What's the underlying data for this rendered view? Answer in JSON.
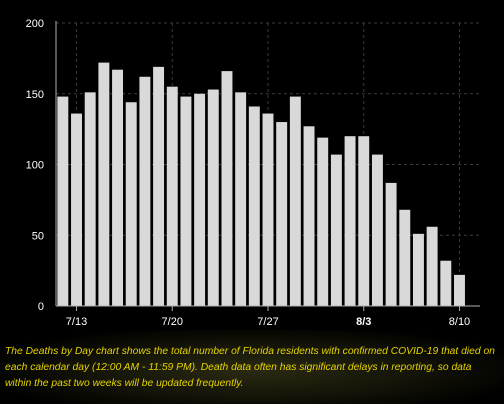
{
  "chart_data": {
    "type": "bar",
    "categories": [
      "7/12",
      "7/13",
      "7/14",
      "7/15",
      "7/16",
      "7/17",
      "7/18",
      "7/19",
      "7/20",
      "7/21",
      "7/22",
      "7/23",
      "7/24",
      "7/25",
      "7/26",
      "7/27",
      "7/28",
      "7/29",
      "7/30",
      "7/31",
      "8/1",
      "8/2",
      "8/3",
      "8/4",
      "8/5",
      "8/6",
      "8/7",
      "8/8",
      "8/9",
      "8/10",
      "8/11"
    ],
    "values": [
      148,
      136,
      151,
      172,
      167,
      144,
      162,
      169,
      155,
      148,
      150,
      153,
      166,
      151,
      141,
      136,
      130,
      148,
      127,
      119,
      107,
      120,
      120,
      107,
      87,
      68,
      51,
      56,
      32,
      22,
      0
    ],
    "ylim": [
      0,
      200
    ],
    "yticks": [
      0,
      50,
      100,
      150,
      200
    ],
    "xtick_labels": [
      {
        "label": "7/13",
        "category": "7/13",
        "bold": false
      },
      {
        "label": "7/20",
        "category": "7/20",
        "bold": false
      },
      {
        "label": "7/27",
        "category": "7/27",
        "bold": false
      },
      {
        "label": "8/3",
        "category": "8/3",
        "bold": true
      },
      {
        "label": "8/10",
        "category": "8/10",
        "bold": false
      }
    ],
    "grid": true,
    "bar_color": "#d9d9d9",
    "background": "#000000",
    "grid_color": "#3a3a3a",
    "axis_color": "#b0b0b0"
  },
  "caption": {
    "text": "The Deaths by Day chart shows the total number of Florida residents with confirmed COVID-19 that died on each calendar day (12:00 AM - 11:59 PM). Death data often has significant delays in reporting, so data within the past two weeks will be updated frequently.",
    "color": "#e6d400"
  }
}
